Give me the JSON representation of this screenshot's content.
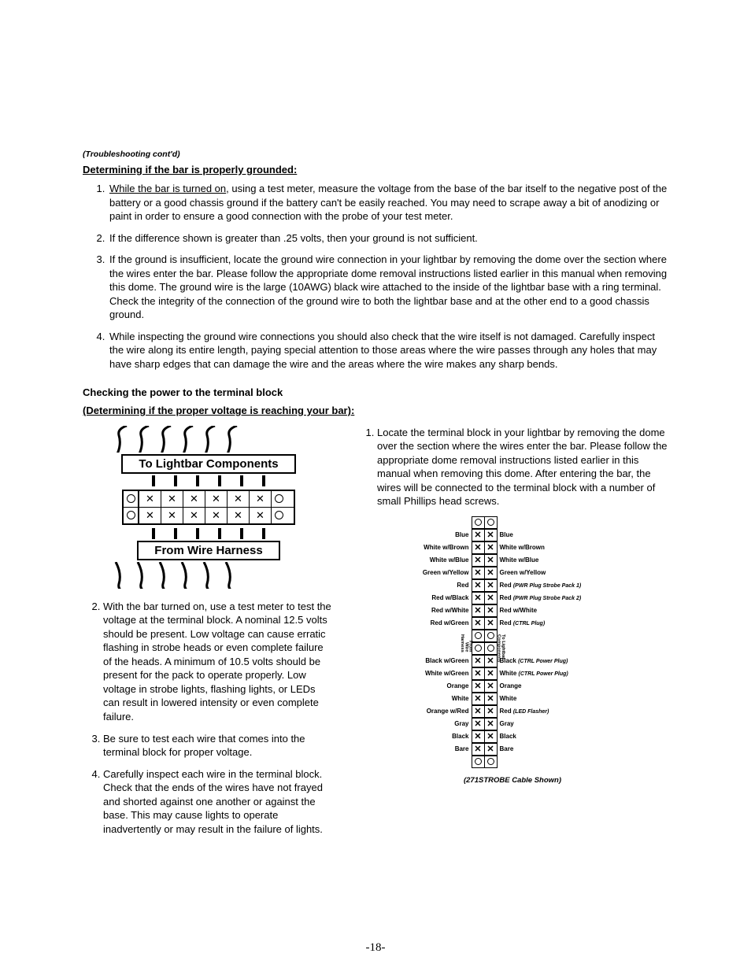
{
  "header_note": "(Troubleshooting cont'd)",
  "sec1_title": "Determining if the bar is properly grounded:",
  "sec1_items": {
    "i1_pre": "While the bar is turned on",
    "i1_post": ", using a test meter, measure the voltage from the base of the bar itself to the negative post of the battery or a good chassis ground if the battery can't be easily reached.  You may need to scrape away a bit of anodizing or paint in order to ensure a good connection with the probe of your test meter.",
    "i2": "If the difference shown is greater than .25 volts, then your ground is not sufficient.",
    "i3": "If the ground is insufficient, locate the ground wire connection in your lightbar by removing the dome over the section where the wires enter the bar.  Please follow the appropriate dome removal instructions listed earlier in this manual when removing this dome.  The ground wire is the large (10AWG) black wire attached to the inside of the lightbar base with a ring terminal.  Check the integrity of the connection of the ground wire to both the lightbar base and at the other end to a good chassis ground.",
    "i4": "While inspecting the ground wire connections you should also check that the wire itself is not damaged.  Carefully inspect the wire along its entire length, paying special attention to those areas where the wire passes through any holes that may have sharp edges that can damage the wire and the areas where the wire makes any sharp bends."
  },
  "sec2_h1": "Checking the power to the terminal block",
  "sec2_h2": "(Determining if the proper voltage is reaching your bar):",
  "diag_top_label": "To Lightbar Components",
  "diag_bot_label": "From Wire Harness",
  "right_items": {
    "i1": "Locate the terminal block in your lightbar by removing the dome over the section where the wires enter the bar.  Please follow the appropriate dome removal instructions listed earlier in this manual when removing this dome.  After entering the bar, the wires will be connected to the terminal block with a number of small Phillips head screws.",
    "i2": "With the bar turned on, use a test meter to test the voltage at the terminal block.  A nominal 12.5 volts should be present.  Low voltage can cause erratic flashing in strobe heads or even complete failure of the heads.  A minimum of 10.5 volts should be present for the pack to operate properly.  Low voltage in strobe lights, flashing lights, or LEDs can result in lowered intensity or even complete failure.",
    "i3": "Be sure to test each wire that comes into the terminal block for proper voltage.",
    "i4": "Carefully inspect each wire in the terminal block.  Check that the ends of the wires have not frayed and shorted against one another or against the base.  This may cause lights to operate inadvertently or may result in the failure of lights."
  },
  "connector": {
    "rows1": [
      {
        "l": "Blue",
        "r": "Blue",
        "rn": ""
      },
      {
        "l": "White w/Brown",
        "r": "White w/Brown",
        "rn": ""
      },
      {
        "l": "White w/Blue",
        "r": "White w/Blue",
        "rn": ""
      },
      {
        "l": "Green w/Yellow",
        "r": "Green w/Yellow",
        "rn": ""
      },
      {
        "l": "Red",
        "r": "Red",
        "rn": "(PWR Plug Strobe Pack 1)"
      },
      {
        "l": "Red w/Black",
        "r": "Red",
        "rn": "(PWR Plug Strobe Pack 2)"
      },
      {
        "l": "Red w/White",
        "r": "Red w/White",
        "rn": ""
      },
      {
        "l": "Red w/Green",
        "r": "Red",
        "rn": "(CTRL Plug)"
      }
    ],
    "gap_left": "From Wire Harness",
    "gap_right": "To Lightbar Components",
    "rows2": [
      {
        "l": "Black w/Green",
        "r": "Black",
        "rn": "(CTRL Power Plug)"
      },
      {
        "l": "White w/Green",
        "r": "White",
        "rn": "(CTRL Power Plug)"
      },
      {
        "l": "Orange",
        "r": "Orange",
        "rn": ""
      },
      {
        "l": "White",
        "r": "White",
        "rn": ""
      },
      {
        "l": "Orange w/Red",
        "r": "Red",
        "rn": "(LED Flasher)"
      },
      {
        "l": "Gray",
        "r": "Gray",
        "rn": ""
      },
      {
        "l": "Black",
        "r": "Black",
        "rn": ""
      },
      {
        "l": "Bare",
        "r": "Bare",
        "rn": ""
      }
    ],
    "caption": "(271STROBE Cable Shown)"
  },
  "page_number": "-18-"
}
